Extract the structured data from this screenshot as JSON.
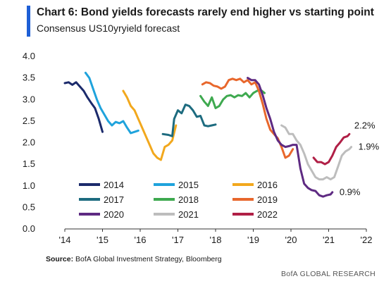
{
  "header": {
    "title": "Chart 6: Bond yields forecasts rarely end higher vs starting point",
    "subtitle": "Consensus US10yryield forecast"
  },
  "footer": {
    "source_label": "Source:",
    "source_text": "BofA Global Investment Strategy, Bloomberg",
    "brand": "BofA GLOBAL RESEARCH"
  },
  "chart_data": {
    "type": "line",
    "title": "Chart 6: Bond yields forecasts rarely end higher vs starting point",
    "subtitle": "Consensus US10yryield forecast",
    "xlabel": "",
    "ylabel": "",
    "xlim": [
      2014,
      2022
    ],
    "ylim": [
      0,
      4.0
    ],
    "yticks": [
      "0.0",
      "0.5",
      "1.0",
      "1.5",
      "2.0",
      "2.5",
      "3.0",
      "3.5",
      "4.0"
    ],
    "xticks": [
      {
        "value": 2014,
        "label": "'14"
      },
      {
        "value": 2015,
        "label": "'15"
      },
      {
        "value": 2016,
        "label": "'16"
      },
      {
        "value": 2017,
        "label": "'17"
      },
      {
        "value": 2018,
        "label": "'18"
      },
      {
        "value": 2019,
        "label": "'19"
      },
      {
        "value": 2020,
        "label": "'20"
      },
      {
        "value": 2021,
        "label": "'21"
      },
      {
        "value": 2022,
        "label": "'22"
      }
    ],
    "grid": false,
    "legend_position": "bottom-left",
    "series": [
      {
        "name": "2014",
        "color": "#1b2a6b",
        "points": [
          [
            2014.0,
            3.38
          ],
          [
            2014.1,
            3.4
          ],
          [
            2014.2,
            3.34
          ],
          [
            2014.3,
            3.4
          ],
          [
            2014.4,
            3.3
          ],
          [
            2014.5,
            3.2
          ],
          [
            2014.6,
            3.05
          ],
          [
            2014.7,
            2.92
          ],
          [
            2014.8,
            2.8
          ],
          [
            2014.9,
            2.55
          ],
          [
            2015.0,
            2.25
          ]
        ]
      },
      {
        "name": "2015",
        "color": "#1fa3dc",
        "points": [
          [
            2014.55,
            3.62
          ],
          [
            2014.65,
            3.5
          ],
          [
            2014.75,
            3.25
          ],
          [
            2014.85,
            3.0
          ],
          [
            2014.95,
            2.8
          ],
          [
            2015.05,
            2.65
          ],
          [
            2015.15,
            2.5
          ],
          [
            2015.25,
            2.4
          ],
          [
            2015.35,
            2.48
          ],
          [
            2015.45,
            2.45
          ],
          [
            2015.55,
            2.5
          ],
          [
            2015.65,
            2.35
          ],
          [
            2015.75,
            2.22
          ],
          [
            2015.85,
            2.25
          ],
          [
            2015.95,
            2.28
          ]
        ]
      },
      {
        "name": "2016",
        "color": "#f2a81d",
        "points": [
          [
            2015.55,
            3.2
          ],
          [
            2015.65,
            3.05
          ],
          [
            2015.75,
            2.85
          ],
          [
            2015.85,
            2.75
          ],
          [
            2015.95,
            2.55
          ],
          [
            2016.05,
            2.35
          ],
          [
            2016.15,
            2.15
          ],
          [
            2016.25,
            1.95
          ],
          [
            2016.35,
            1.75
          ],
          [
            2016.45,
            1.65
          ],
          [
            2016.55,
            1.6
          ],
          [
            2016.65,
            1.9
          ],
          [
            2016.75,
            1.95
          ],
          [
            2016.85,
            2.05
          ],
          [
            2016.95,
            2.4
          ]
        ]
      },
      {
        "name": "2017",
        "color": "#1d6b7f",
        "points": [
          [
            2016.6,
            2.2
          ],
          [
            2016.75,
            2.18
          ],
          [
            2016.85,
            2.15
          ],
          [
            2016.9,
            2.55
          ],
          [
            2017.0,
            2.75
          ],
          [
            2017.1,
            2.68
          ],
          [
            2017.2,
            2.88
          ],
          [
            2017.3,
            2.85
          ],
          [
            2017.4,
            2.75
          ],
          [
            2017.5,
            2.6
          ],
          [
            2017.6,
            2.62
          ],
          [
            2017.7,
            2.4
          ],
          [
            2017.8,
            2.38
          ],
          [
            2017.9,
            2.4
          ],
          [
            2018.0,
            2.42
          ]
        ]
      },
      {
        "name": "2018",
        "color": "#3ea94f",
        "points": [
          [
            2017.6,
            3.08
          ],
          [
            2017.7,
            2.95
          ],
          [
            2017.8,
            2.85
          ],
          [
            2017.9,
            3.05
          ],
          [
            2018.0,
            2.8
          ],
          [
            2018.1,
            2.85
          ],
          [
            2018.2,
            3.0
          ],
          [
            2018.3,
            3.08
          ],
          [
            2018.4,
            3.1
          ],
          [
            2018.5,
            3.05
          ],
          [
            2018.6,
            3.1
          ],
          [
            2018.7,
            3.08
          ],
          [
            2018.8,
            3.15
          ],
          [
            2018.9,
            3.05
          ],
          [
            2019.0,
            3.15
          ],
          [
            2019.1,
            3.2
          ],
          [
            2019.2,
            3.22
          ],
          [
            2019.3,
            3.15
          ]
        ]
      },
      {
        "name": "2019",
        "color": "#e8672c",
        "points": [
          [
            2017.65,
            3.35
          ],
          [
            2017.75,
            3.4
          ],
          [
            2017.85,
            3.38
          ],
          [
            2017.95,
            3.32
          ],
          [
            2018.05,
            3.3
          ],
          [
            2018.15,
            3.25
          ],
          [
            2018.25,
            3.3
          ],
          [
            2018.35,
            3.45
          ],
          [
            2018.45,
            3.48
          ],
          [
            2018.55,
            3.45
          ],
          [
            2018.65,
            3.48
          ],
          [
            2018.75,
            3.4
          ],
          [
            2018.85,
            3.45
          ],
          [
            2018.95,
            3.35
          ],
          [
            2019.05,
            3.4
          ],
          [
            2019.15,
            3.2
          ],
          [
            2019.25,
            2.9
          ],
          [
            2019.35,
            2.55
          ],
          [
            2019.45,
            2.3
          ],
          [
            2019.55,
            2.2
          ],
          [
            2019.65,
            2.1
          ],
          [
            2019.75,
            1.9
          ],
          [
            2019.85,
            1.65
          ],
          [
            2019.95,
            1.7
          ],
          [
            2020.05,
            1.85
          ]
        ]
      },
      {
        "name": "2020",
        "color": "#5e2a82",
        "points": [
          [
            2018.85,
            3.5
          ],
          [
            2018.95,
            3.45
          ],
          [
            2019.05,
            3.45
          ],
          [
            2019.15,
            3.35
          ],
          [
            2019.25,
            3.1
          ],
          [
            2019.35,
            2.8
          ],
          [
            2019.45,
            2.55
          ],
          [
            2019.55,
            2.25
          ],
          [
            2019.65,
            2.05
          ],
          [
            2019.75,
            1.95
          ],
          [
            2019.85,
            1.9
          ],
          [
            2019.95,
            1.92
          ],
          [
            2020.05,
            1.95
          ],
          [
            2020.15,
            1.95
          ],
          [
            2020.25,
            1.4
          ],
          [
            2020.35,
            1.05
          ],
          [
            2020.45,
            0.95
          ],
          [
            2020.55,
            0.9
          ],
          [
            2020.65,
            0.88
          ],
          [
            2020.75,
            0.78
          ],
          [
            2020.85,
            0.75
          ],
          [
            2020.95,
            0.78
          ],
          [
            2021.05,
            0.8
          ],
          [
            2021.1,
            0.85
          ]
        ]
      },
      {
        "name": "2021",
        "color": "#bdbdbd",
        "points": [
          [
            2019.75,
            2.4
          ],
          [
            2019.85,
            2.35
          ],
          [
            2019.95,
            2.2
          ],
          [
            2020.05,
            2.2
          ],
          [
            2020.15,
            2.05
          ],
          [
            2020.25,
            1.95
          ],
          [
            2020.35,
            1.75
          ],
          [
            2020.45,
            1.5
          ],
          [
            2020.55,
            1.35
          ],
          [
            2020.65,
            1.2
          ],
          [
            2020.75,
            1.15
          ],
          [
            2020.85,
            1.15
          ],
          [
            2020.95,
            1.2
          ],
          [
            2021.05,
            1.15
          ],
          [
            2021.15,
            1.2
          ],
          [
            2021.25,
            1.45
          ],
          [
            2021.35,
            1.7
          ],
          [
            2021.45,
            1.8
          ],
          [
            2021.55,
            1.85
          ],
          [
            2021.6,
            1.9
          ]
        ]
      },
      {
        "name": "2022",
        "color": "#b01f46",
        "points": [
          [
            2020.6,
            1.65
          ],
          [
            2020.7,
            1.55
          ],
          [
            2020.8,
            1.55
          ],
          [
            2020.9,
            1.5
          ],
          [
            2021.0,
            1.55
          ],
          [
            2021.1,
            1.7
          ],
          [
            2021.2,
            1.9
          ],
          [
            2021.3,
            2.0
          ],
          [
            2021.4,
            2.12
          ],
          [
            2021.5,
            2.15
          ],
          [
            2021.55,
            2.2
          ]
        ]
      }
    ],
    "annotations": [
      {
        "text": "2.2%",
        "series": "2022"
      },
      {
        "text": "1.9%",
        "series": "2021"
      },
      {
        "text": "0.9%",
        "series": "2020"
      }
    ]
  }
}
